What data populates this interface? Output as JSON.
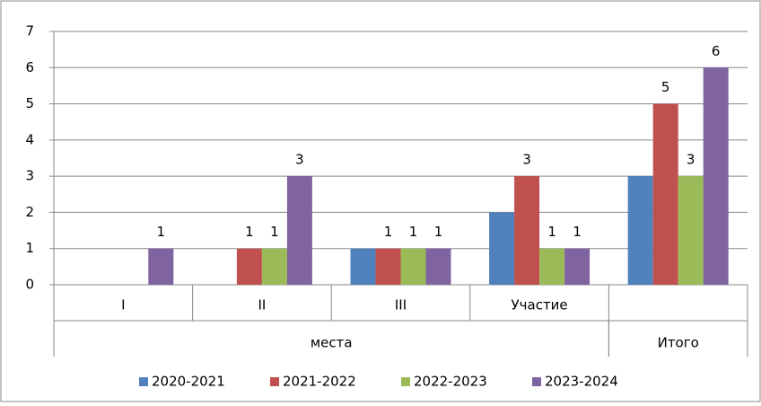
{
  "chart_data": {
    "type": "bar",
    "categories": [
      "I",
      "II",
      "III",
      "Участие",
      null
    ],
    "groups": [
      {
        "label": "места",
        "span": 4
      },
      {
        "label": "Итого",
        "span": 1
      }
    ],
    "series": [
      {
        "name": "2020-2021",
        "color": "#4f81bd",
        "values": [
          null,
          null,
          1,
          2,
          3
        ],
        "show_labels": false
      },
      {
        "name": "2021-2022",
        "color": "#c0504d",
        "values": [
          null,
          1,
          1,
          3,
          5
        ],
        "show_labels": true
      },
      {
        "name": "2022-2023",
        "color": "#9bbb59",
        "values": [
          null,
          1,
          1,
          1,
          3
        ],
        "show_labels": true
      },
      {
        "name": "2023-2024",
        "color": "#8064a2",
        "values": [
          1,
          3,
          1,
          1,
          6
        ],
        "show_labels": true
      }
    ],
    "ylim": [
      0,
      7
    ],
    "yticks": [
      0,
      1,
      2,
      3,
      4,
      5,
      6,
      7
    ],
    "grid": true,
    "legend": "bottom"
  }
}
